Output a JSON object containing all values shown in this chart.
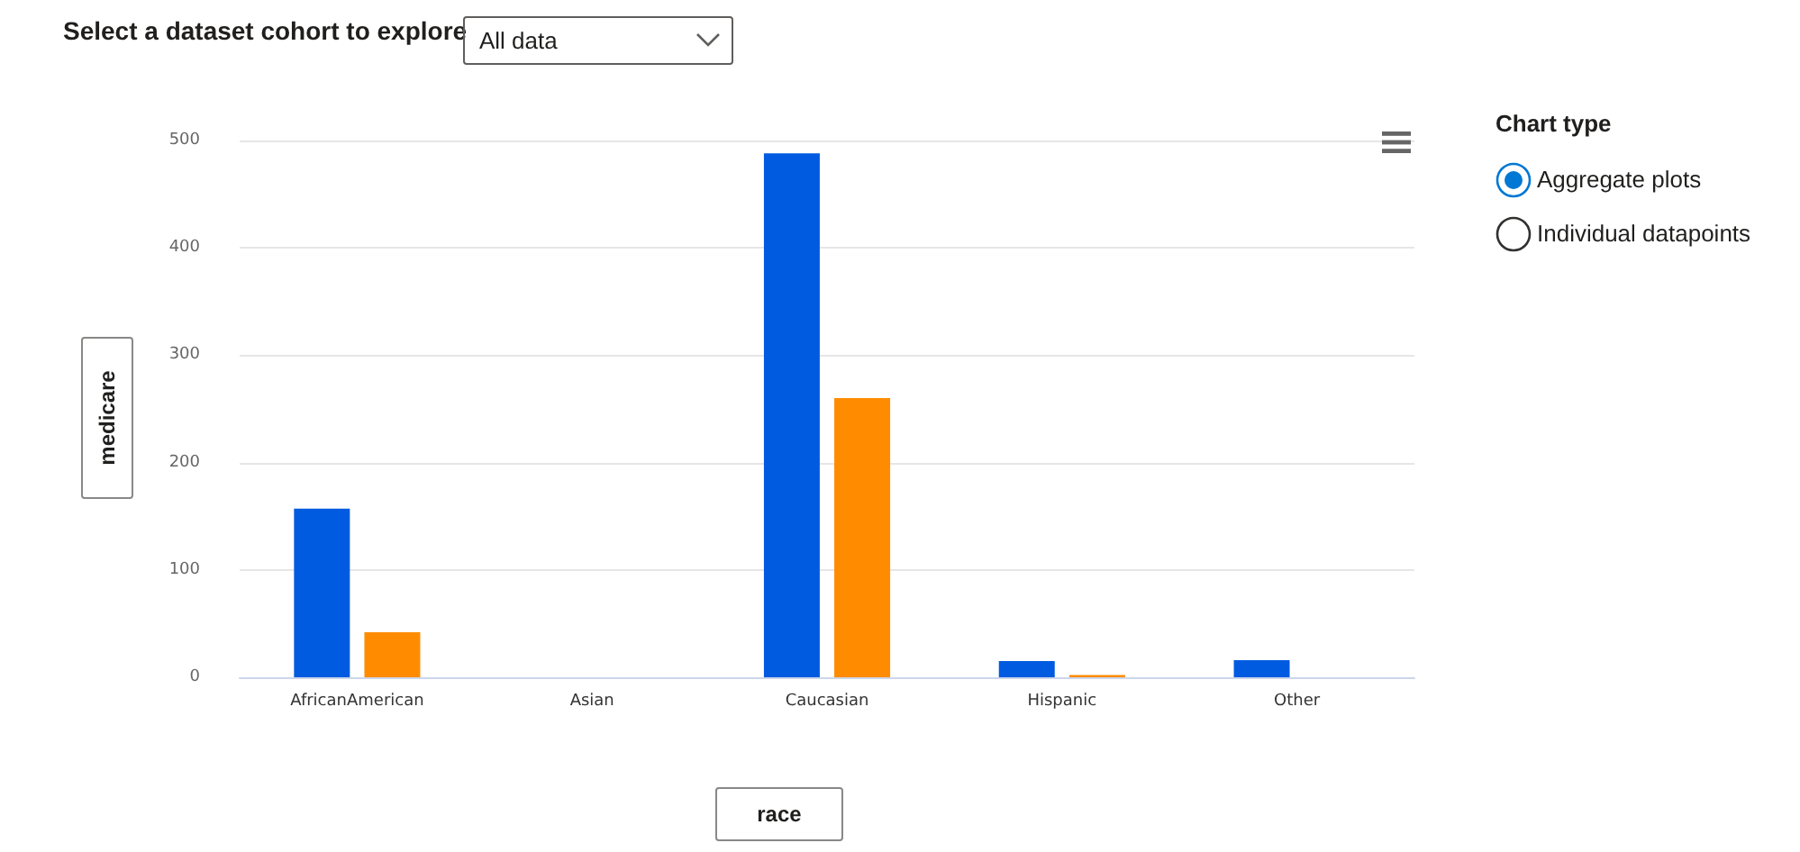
{
  "chart_data": {
    "type": "bar",
    "title": "Select a dataset cohort to explore",
    "xlabel": "race",
    "ylabel": "medicare",
    "annotations": [
      "All data",
      "Chart type",
      "Aggregate plots",
      "Individual datapoints"
    ],
    "categories": [
      "AfricanAmerican",
      "Asian",
      "Caucasian",
      "Hispanic",
      "Other"
    ],
    "series": [
      {
        "color": "#005be0",
        "values": [
          157,
          0,
          488,
          15,
          16
        ]
      },
      {
        "color": "#ff8c00",
        "values": [
          42,
          0,
          260,
          2,
          0
        ]
      }
    ],
    "ylim": [
      0,
      500
    ],
    "yticks": [
      0,
      100,
      200,
      300,
      400,
      500
    ],
    "grid": "y"
  }
}
